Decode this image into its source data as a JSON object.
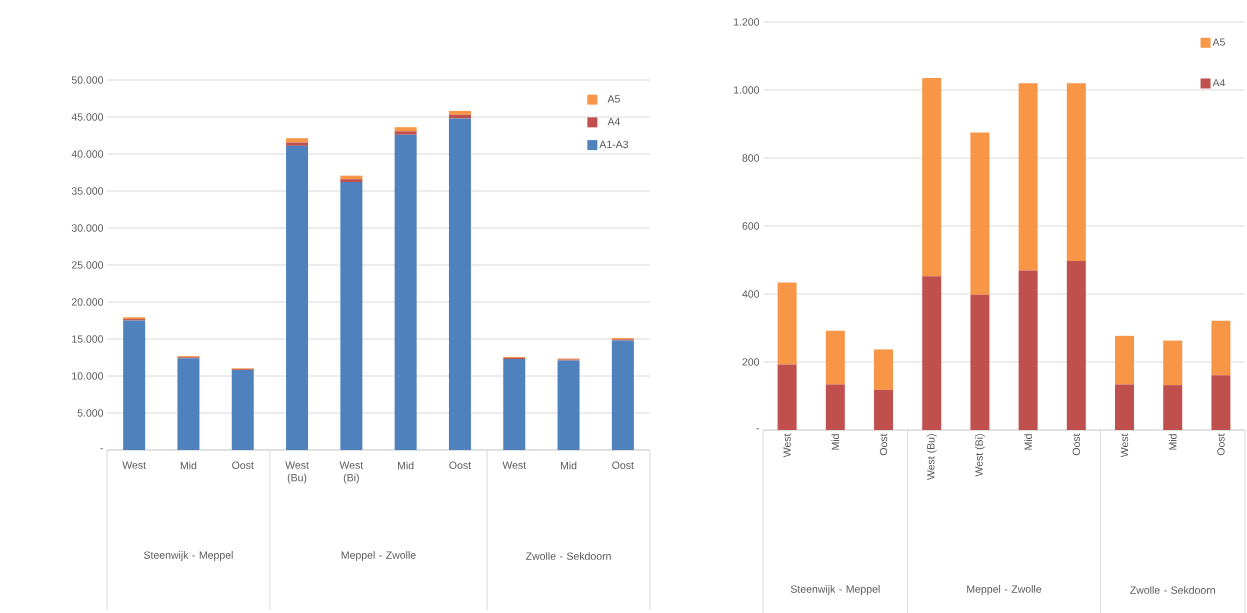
{
  "chart_data": [
    {
      "type": "bar",
      "stacked": true,
      "grid": "y",
      "legend": "top right",
      "categories": [
        "West",
        "Mid",
        "Oost",
        "West (Bu)",
        "West (Bi)",
        "Mid",
        "Oost",
        "West",
        "Mid",
        "Oost"
      ],
      "series": [
        {
          "name": "A1-A3",
          "color": "#4f81bd",
          "values": [
            17500,
            12400,
            10800,
            41100,
            36200,
            42600,
            44800,
            12300,
            12100,
            14800
          ]
        },
        {
          "name": "A4",
          "color": "#c0504d",
          "values": [
            193,
            134,
            118,
            452,
            398,
            469,
            497,
            134,
            132,
            161
          ]
        },
        {
          "name": "A5",
          "color": "#f79646",
          "values": [
            241,
            158,
            119,
            583,
            477,
            551,
            523,
            143,
            131,
            160
          ]
        }
      ],
      "ylim": [
        0,
        50000
      ],
      "yticks": [
        {
          "value": 0,
          "label": "-"
        },
        {
          "value": 5000,
          "label": "5.000"
        },
        {
          "value": 10000,
          "label": "10.000"
        },
        {
          "value": 15000,
          "label": "15.000"
        },
        {
          "value": 20000,
          "label": "20.000"
        },
        {
          "value": 25000,
          "label": "25.000"
        },
        {
          "value": 30000,
          "label": "30.000"
        },
        {
          "value": 35000,
          "label": "35.000"
        },
        {
          "value": 40000,
          "label": "40.000"
        },
        {
          "value": 45000,
          "label": "45.000"
        },
        {
          "value": 50000,
          "label": "50.000"
        }
      ],
      "annotations": [
        "Steenwijk - Meppel",
        "Meppel - Zwolle",
        "Zwolle - Sekdoorn"
      ]
    },
    {
      "type": "bar",
      "stacked": true,
      "grid": "y",
      "legend": "top right",
      "categories": [
        "West",
        "Mid",
        "Oost",
        "West (Bu)",
        "West (Bi)",
        "Mid",
        "Oost",
        "West",
        "Mid",
        "Oost"
      ],
      "series": [
        {
          "name": "A4",
          "color": "#c0504d",
          "values": [
            193,
            134,
            118,
            452,
            398,
            469,
            497,
            134,
            132,
            161
          ]
        },
        {
          "name": "A5",
          "color": "#f79646",
          "values": [
            241,
            158,
            119,
            583,
            477,
            551,
            523,
            143,
            131,
            160
          ]
        }
      ],
      "ylim": [
        0,
        1200
      ],
      "yticks": [
        {
          "value": 0,
          "label": "-"
        },
        200,
        400,
        600,
        800,
        {
          "value": 1000,
          "label": "1.000"
        },
        {
          "value": 1200,
          "label": "1.200"
        }
      ],
      "annotations": [
        "Steenwijk - Meppel",
        "Meppel - Zwolle",
        "Zwolle - Sekdoorn"
      ]
    }
  ]
}
